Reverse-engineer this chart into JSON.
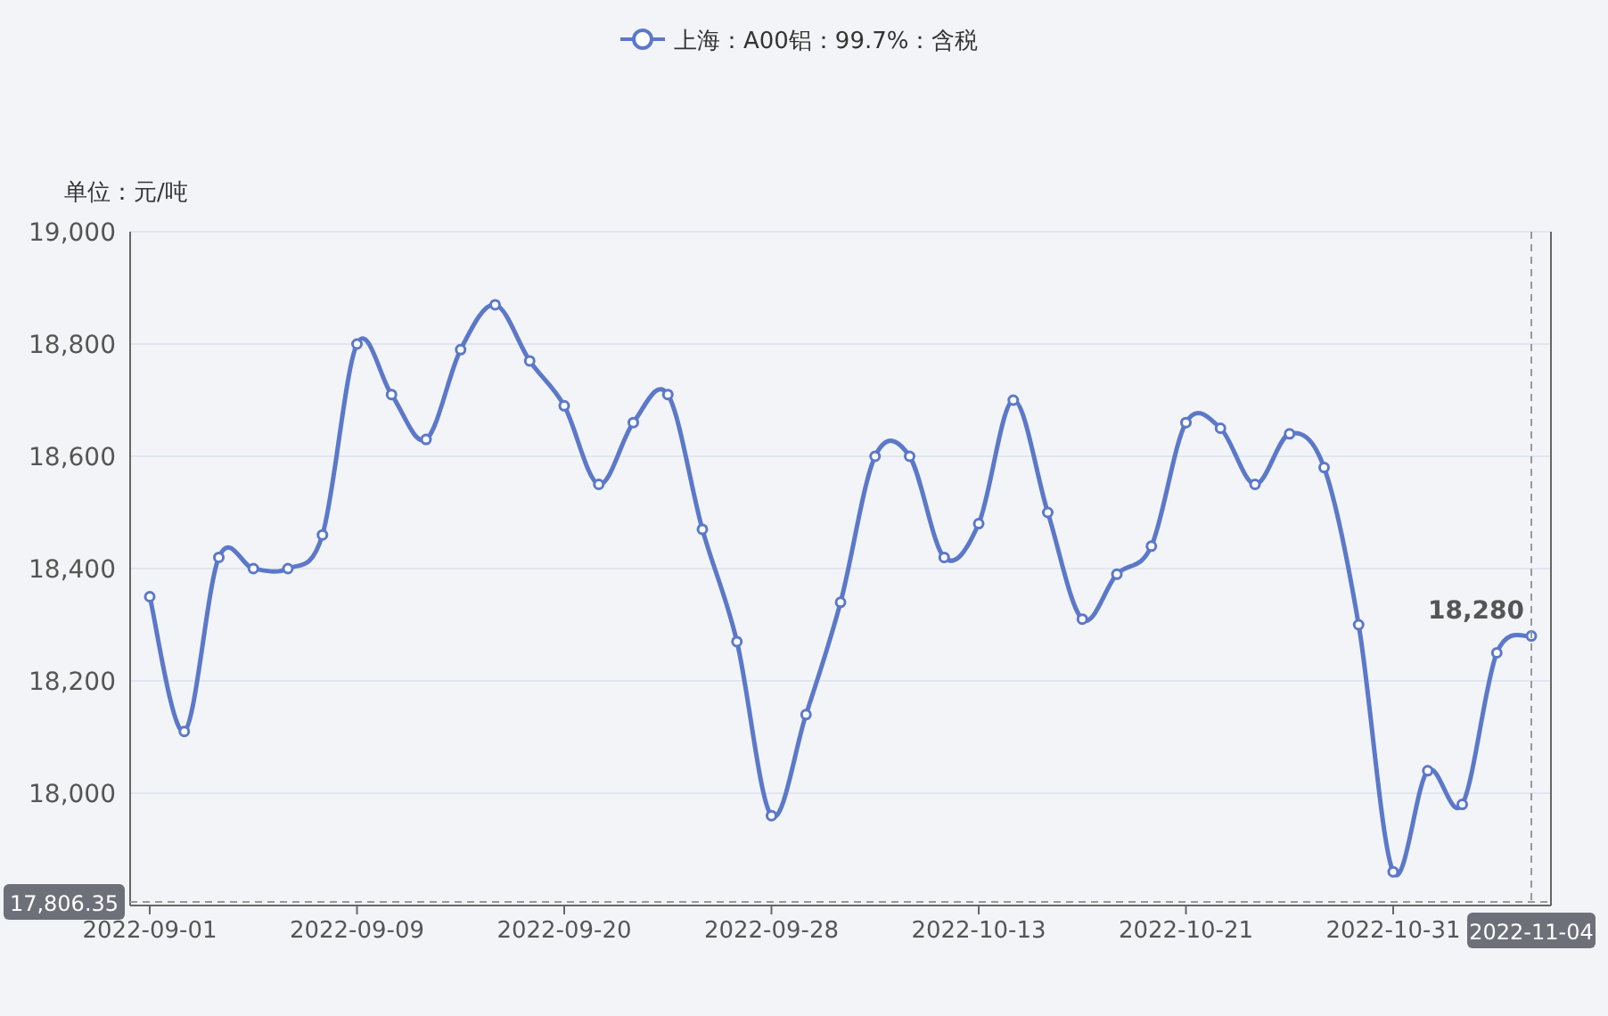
{
  "chart_data": {
    "type": "line",
    "ylabel": "单位：元/吨",
    "categories": [
      "2022-09-01",
      null,
      null,
      null,
      null,
      null,
      "2022-09-09",
      null,
      null,
      null,
      null,
      null,
      "2022-09-20",
      null,
      null,
      null,
      null,
      null,
      "2022-09-28",
      null,
      null,
      null,
      null,
      null,
      "2022-10-13",
      null,
      null,
      null,
      null,
      null,
      "2022-10-21",
      null,
      null,
      null,
      null,
      null,
      "2022-10-31",
      null,
      null,
      null,
      "2022-11-04"
    ],
    "series": [
      {
        "name": "上海：A00铝：99.7%：含税",
        "color": "#5b78c9",
        "values": [
          18350,
          18110,
          18420,
          18400,
          18400,
          18460,
          18800,
          18710,
          18630,
          18790,
          18870,
          18770,
          18690,
          18550,
          18660,
          18710,
          18470,
          18270,
          17960,
          18140,
          18340,
          18600,
          18600,
          18420,
          18480,
          18700,
          18500,
          18310,
          18390,
          18440,
          18660,
          18650,
          18550,
          18640,
          18580,
          18300,
          17860,
          18040,
          17980,
          18250,
          18280
        ]
      }
    ],
    "ylim": [
      17800,
      19000
    ],
    "yticks": [
      {
        "value": 18000,
        "label": "18,000"
      },
      {
        "value": 18200,
        "label": "18,200"
      },
      {
        "value": 18400,
        "label": "18,400"
      },
      {
        "value": 18600,
        "label": "18,600"
      },
      {
        "value": 18800,
        "label": "18,800"
      },
      {
        "value": 19000,
        "label": "19,000"
      }
    ],
    "ref_lines": [
      {
        "axis": "y",
        "value": 17806.35,
        "label": "17,806.35",
        "line_style": "dashed"
      },
      {
        "axis": "x",
        "value": "2022-11-04",
        "label": "2022-11-04",
        "line_style": "dashed"
      }
    ],
    "annotations": [
      {
        "text": "18,280",
        "x": "2022-11-04",
        "y": 18280
      }
    ],
    "grid": "y",
    "legend": "top",
    "marker": "circle",
    "line_style": "solid"
  }
}
